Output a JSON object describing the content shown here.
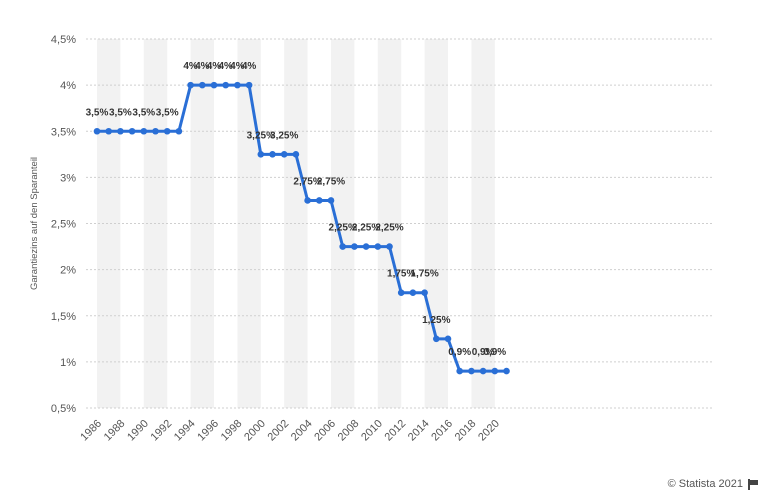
{
  "chart_data": {
    "type": "line",
    "title": "",
    "xlabel": "",
    "ylabel": "Garantiezins auf den Sparanteil",
    "x": [
      1986,
      1987,
      1988,
      1989,
      1990,
      1991,
      1992,
      1993,
      1994,
      1995,
      1996,
      1997,
      1998,
      1999,
      2000,
      2001,
      2002,
      2003,
      2004,
      2005,
      2006,
      2007,
      2008,
      2009,
      2010,
      2011,
      2012,
      2013,
      2014,
      2015,
      2016,
      2017,
      2018,
      2019,
      2020,
      2021
    ],
    "series": [
      {
        "name": "",
        "color": "#2a6fd6",
        "values": [
          3.5,
          3.5,
          3.5,
          3.5,
          3.5,
          3.5,
          3.5,
          3.5,
          4,
          4,
          4,
          4,
          4,
          4,
          3.25,
          3.25,
          3.25,
          3.25,
          2.75,
          2.75,
          2.75,
          2.25,
          2.25,
          2.25,
          2.25,
          2.25,
          1.75,
          1.75,
          1.75,
          1.25,
          1.25,
          0.9,
          0.9,
          0.9,
          0.9,
          0.9
        ]
      }
    ],
    "data_labels": [
      {
        "x": 1986,
        "text": "3,5%"
      },
      {
        "x": 1988,
        "text": "3,5%"
      },
      {
        "x": 1990,
        "text": "3,5%"
      },
      {
        "x": 1992,
        "text": "3,5%"
      },
      {
        "x": 1994,
        "text": "4%"
      },
      {
        "x": 1995,
        "text": "4%"
      },
      {
        "x": 1996,
        "text": "4%"
      },
      {
        "x": 1997,
        "text": "4%"
      },
      {
        "x": 1998,
        "text": "4%"
      },
      {
        "x": 1999,
        "text": "4%"
      },
      {
        "x": 2000,
        "text": "3,25%"
      },
      {
        "x": 2002,
        "text": "3,25%"
      },
      {
        "x": 2004,
        "text": "2,75%"
      },
      {
        "x": 2006,
        "text": "2,75%"
      },
      {
        "x": 2007,
        "text": "2,25%"
      },
      {
        "x": 2009,
        "text": "2,25%"
      },
      {
        "x": 2011,
        "text": "2,25%"
      },
      {
        "x": 2012,
        "text": "1,75%"
      },
      {
        "x": 2014,
        "text": "1,75%"
      },
      {
        "x": 2015,
        "text": "1,25%"
      },
      {
        "x": 2017,
        "text": "0,9%"
      },
      {
        "x": 2019,
        "text": "0,9%"
      },
      {
        "x": 2020,
        "text": "0,9%"
      }
    ],
    "xticks": [
      1986,
      1988,
      1990,
      1992,
      1994,
      1996,
      1998,
      2000,
      2002,
      2004,
      2006,
      2008,
      2010,
      2012,
      2014,
      2016,
      2018,
      2020
    ],
    "yticks": [
      {
        "value": 0.5,
        "label": "0,5%"
      },
      {
        "value": 1,
        "label": "1%"
      },
      {
        "value": 1.5,
        "label": "1,5%"
      },
      {
        "value": 2,
        "label": "2%"
      },
      {
        "value": 2.5,
        "label": "2,5%"
      },
      {
        "value": 3,
        "label": "3%"
      },
      {
        "value": 3.5,
        "label": "3,5%"
      },
      {
        "value": 4,
        "label": "4%"
      },
      {
        "value": 4.5,
        "label": "4,5%"
      }
    ],
    "ylim": [
      0.5,
      4.5
    ],
    "xlim": [
      1986,
      2021
    ],
    "grid": true,
    "legend": "none"
  },
  "credit": "© Statista 2021",
  "colors": {
    "line": "#2a6fd6",
    "band": "#f2f2f2",
    "grid": "#cfcfcf"
  }
}
